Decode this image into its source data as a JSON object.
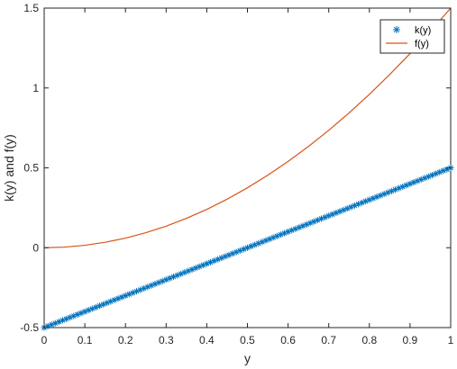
{
  "chart_data": {
    "type": "line",
    "title": "",
    "xlabel": "y",
    "ylabel": "k(y) and f(y)",
    "xlim": [
      0,
      1
    ],
    "ylim": [
      -0.5,
      1.5
    ],
    "x_ticks": [
      0,
      0.1,
      0.2,
      0.3,
      0.4,
      0.5,
      0.6,
      0.7,
      0.8,
      0.9,
      1
    ],
    "x_tick_labels": [
      "0",
      "0.1",
      "0.2",
      "0.3",
      "0.4",
      "0.5",
      "0.6",
      "0.7",
      "0.8",
      "0.9",
      "1"
    ],
    "y_ticks": [
      -0.5,
      0,
      0.5,
      1,
      1.5
    ],
    "y_tick_labels": [
      "-0.5",
      "0",
      "0.5",
      "1",
      "1.5"
    ],
    "grid": false,
    "legend_position": "top-right",
    "series": [
      {
        "name": "k(y)",
        "style": "star-markers",
        "color": "#0072BD",
        "x": [
          0,
          0.05,
          0.1,
          0.15,
          0.2,
          0.25,
          0.3,
          0.35,
          0.4,
          0.45,
          0.5,
          0.55,
          0.6,
          0.65,
          0.7,
          0.75,
          0.8,
          0.85,
          0.9,
          0.95,
          1
        ],
        "y": [
          -0.5,
          -0.45,
          -0.4,
          -0.35,
          -0.3,
          -0.25,
          -0.2,
          -0.15,
          -0.1,
          -0.05,
          0,
          0.05,
          0.1,
          0.15,
          0.2,
          0.25,
          0.3,
          0.35,
          0.4,
          0.45,
          0.5
        ]
      },
      {
        "name": "f(y)",
        "style": "line",
        "color": "#D95319",
        "x": [
          0,
          0.05,
          0.1,
          0.15,
          0.2,
          0.25,
          0.3,
          0.35,
          0.4,
          0.45,
          0.5,
          0.55,
          0.6,
          0.65,
          0.7,
          0.75,
          0.8,
          0.85,
          0.9,
          0.95,
          1
        ],
        "y": [
          0,
          0.004,
          0.015,
          0.034,
          0.06,
          0.094,
          0.135,
          0.184,
          0.24,
          0.304,
          0.375,
          0.454,
          0.54,
          0.634,
          0.735,
          0.844,
          0.96,
          1.084,
          1.215,
          1.354,
          1.5
        ]
      }
    ]
  }
}
